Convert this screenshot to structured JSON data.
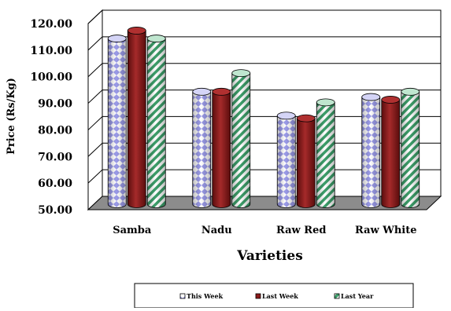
{
  "chart_data": {
    "type": "bar",
    "title": "",
    "xlabel": "Varieties",
    "ylabel": "Price (Rs/Kg)",
    "categories": [
      "Samba",
      "Nadu",
      "Raw Red",
      "Raw White"
    ],
    "yticks": [
      "50.00",
      "60.00",
      "70.00",
      "80.00",
      "90.00",
      "100.00",
      "110.00",
      "120.00"
    ],
    "ylim": [
      50,
      120
    ],
    "grid": true,
    "legend_position": "bottom",
    "series": [
      {
        "name": "This Week",
        "values": [
          112,
          92,
          83,
          90
        ],
        "color": "#b8b8f0",
        "pattern": "diamond-check"
      },
      {
        "name": "Last Week",
        "values": [
          115,
          92,
          82,
          89
        ],
        "color": "#8b1a1a",
        "pattern": "solid"
      },
      {
        "name": "Last Year",
        "values": [
          112,
          99,
          88,
          92
        ],
        "color": "#3d9f6a",
        "pattern": "diagonal-stripes"
      }
    ]
  }
}
